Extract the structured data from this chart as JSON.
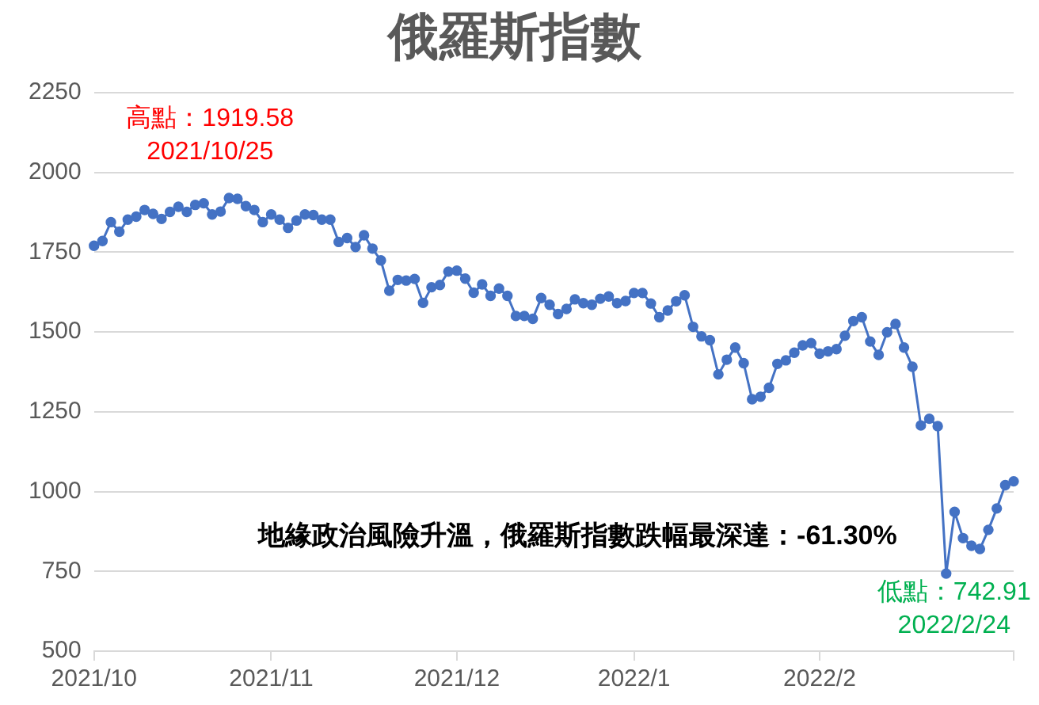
{
  "chart_data": {
    "type": "line",
    "title": "俄羅斯指數",
    "categories": [
      "2021/10",
      null,
      null,
      null,
      null,
      null,
      null,
      null,
      null,
      null,
      null,
      null,
      null,
      null,
      null,
      null,
      null,
      null,
      null,
      null,
      null,
      "2021/11",
      null,
      null,
      null,
      null,
      null,
      null,
      null,
      null,
      null,
      null,
      null,
      null,
      null,
      null,
      null,
      null,
      null,
      null,
      null,
      null,
      null,
      "2021/12",
      null,
      null,
      null,
      null,
      null,
      null,
      null,
      null,
      null,
      null,
      null,
      null,
      null,
      null,
      null,
      null,
      null,
      null,
      null,
      null,
      "2022/1",
      null,
      null,
      null,
      null,
      null,
      null,
      null,
      null,
      null,
      null,
      null,
      null,
      null,
      null,
      null,
      null,
      null,
      null,
      null,
      null,
      null,
      "2022/2",
      null,
      null,
      null,
      null,
      null,
      null,
      null,
      null,
      null,
      null,
      null,
      null,
      null,
      null,
      null,
      null,
      null,
      null,
      null,
      null,
      null,
      null,
      null
    ],
    "series": [
      {
        "color": "#4472c4",
        "values": [
          1770,
          1785,
          1844,
          1814,
          1852,
          1861,
          1882,
          1870,
          1854,
          1876,
          1892,
          1876,
          1898,
          1903,
          1868,
          1877,
          1919.58,
          1917,
          1894,
          1882,
          1844,
          1868,
          1852,
          1826,
          1849,
          1868,
          1866,
          1852,
          1852,
          1782,
          1794,
          1766,
          1803,
          1761,
          1724,
          1629,
          1663,
          1661,
          1666,
          1591,
          1640,
          1647,
          1689,
          1692,
          1667,
          1623,
          1649,
          1613,
          1636,
          1613,
          1550,
          1550,
          1541,
          1606,
          1585,
          1556,
          1572,
          1602,
          1590,
          1585,
          1604,
          1611,
          1590,
          1597,
          1622,
          1622,
          1589,
          1546,
          1567,
          1596,
          1615,
          1516,
          1486,
          1474,
          1367,
          1413,
          1451,
          1402,
          1289,
          1297,
          1325,
          1400,
          1411,
          1435,
          1458,
          1465,
          1432,
          1439,
          1446,
          1488,
          1534,
          1546,
          1470,
          1428,
          1499,
          1525,
          1451,
          1391,
          1207,
          1228,
          1205,
          742.91,
          936,
          854,
          830,
          820,
          880,
          947,
          1020,
          1032
        ]
      }
    ],
    "ylim": [
      500,
      2250
    ],
    "yticks": [
      500,
      750,
      1000,
      1250,
      1500,
      1750,
      2000,
      2250
    ],
    "grid": "y",
    "legend": false,
    "marker": "circle",
    "line_style": "solid",
    "annotations": [
      {
        "text": "高點：1919.58\n2021/10/25",
        "y": 1919.58
      },
      {
        "text": "低點：742.91\n2022/2/24",
        "y": 742.91
      },
      "地緣政治風險升溫，俄羅斯指數跌幅最深達：-61.30%"
    ]
  }
}
